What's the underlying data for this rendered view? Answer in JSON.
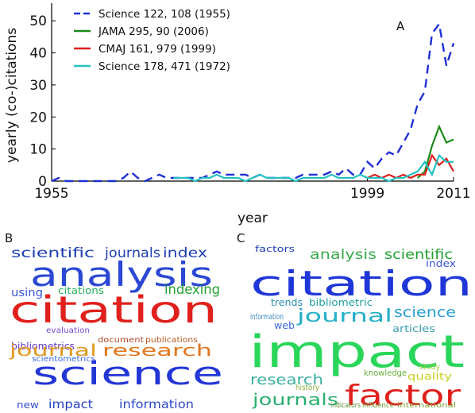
{
  "chart_data": {
    "type": "line",
    "panel_label": "A",
    "xlabel": "year",
    "ylabel": "yearly (co-)citations",
    "xlim": [
      1955,
      2011
    ],
    "ylim": [
      0,
      55
    ],
    "xticks": [
      1955,
      1999,
      2011
    ],
    "yticks": [
      0,
      10,
      20,
      30,
      40,
      50
    ],
    "grid": false,
    "legend_position": "top-left",
    "series": [
      {
        "name": "Science 122, 108 (1955)",
        "color": "#1f2fd6",
        "dash": true,
        "x": [
          1955,
          1956,
          1957,
          1958,
          1959,
          1960,
          1961,
          1962,
          1963,
          1964,
          1965,
          1966,
          1967,
          1968,
          1969,
          1970,
          1971,
          1972,
          1973,
          1974,
          1975,
          1976,
          1977,
          1978,
          1979,
          1980,
          1981,
          1982,
          1983,
          1984,
          1985,
          1986,
          1987,
          1988,
          1989,
          1990,
          1991,
          1992,
          1993,
          1994,
          1995,
          1996,
          1997,
          1998,
          1999,
          2000,
          2001,
          2002,
          2003,
          2004,
          2005,
          2006,
          2007,
          2008,
          2009,
          2010,
          2011
        ],
        "y": [
          0,
          1,
          0,
          0,
          0,
          0,
          0,
          0,
          0,
          0,
          1,
          3,
          1,
          0,
          1,
          2,
          1,
          1,
          1,
          1,
          1,
          1,
          2,
          3,
          2,
          2,
          2,
          2,
          1,
          2,
          1,
          1,
          1,
          1,
          1,
          2,
          2,
          2,
          2,
          3,
          2,
          4,
          2,
          2,
          6,
          4,
          7,
          9,
          8,
          12,
          16,
          24,
          28,
          46,
          49,
          36,
          43
        ]
      },
      {
        "name": "JAMA 295, 90 (2006)",
        "color": "#1b8a1b",
        "dash": false,
        "x": [
          2006,
          2007,
          2008,
          2009,
          2010,
          2011
        ],
        "y": [
          1,
          3,
          11,
          17,
          12,
          13
        ]
      },
      {
        "name": "CMAJ 161, 979 (1999)",
        "color": "#e01c1c",
        "dash": false,
        "x": [
          1999,
          2000,
          2001,
          2002,
          2003,
          2004,
          2005,
          2006,
          2007,
          2008,
          2009,
          2010,
          2011
        ],
        "y": [
          1,
          2,
          1,
          2,
          1,
          2,
          1,
          2,
          2,
          8,
          5,
          7,
          3
        ]
      },
      {
        "name": "Science 178, 471 (1972)",
        "color": "#22c1c1",
        "dash": false,
        "x": [
          1972,
          1973,
          1974,
          1975,
          1976,
          1977,
          1978,
          1979,
          1980,
          1981,
          1982,
          1983,
          1984,
          1985,
          1986,
          1987,
          1988,
          1989,
          1990,
          1991,
          1992,
          1993,
          1994,
          1995,
          1996,
          1997,
          1998,
          1999,
          2000,
          2001,
          2002,
          2003,
          2004,
          2005,
          2006,
          2007,
          2008,
          2009,
          2010,
          2011
        ],
        "y": [
          1,
          1,
          1,
          0,
          1,
          1,
          2,
          1,
          1,
          1,
          0,
          1,
          2,
          1,
          1,
          1,
          1,
          0,
          1,
          1,
          1,
          1,
          2,
          1,
          1,
          1,
          2,
          1,
          1,
          1,
          0,
          1,
          1,
          2,
          3,
          6,
          2,
          8,
          6,
          6
        ]
      }
    ]
  },
  "panels": {
    "B": {
      "label": "B",
      "words": [
        {
          "t": "scientific",
          "c": "#1f3fb0"
        },
        {
          "t": "journals",
          "c": "#1f3fb0"
        },
        {
          "t": "index",
          "c": "#1f3fb0"
        },
        {
          "t": "analysis",
          "c": "#2b48d4"
        },
        {
          "t": "using",
          "c": "#3a55d8"
        },
        {
          "t": "citations",
          "c": "#24b05a"
        },
        {
          "t": "indexing",
          "c": "#22a032"
        },
        {
          "t": "citation",
          "c": "#e0201c"
        },
        {
          "t": "evaluation",
          "c": "#7a4bd0"
        },
        {
          "t": "bibliometrics",
          "c": "#6a3ac0"
        },
        {
          "t": "document",
          "c": "#b04a2a"
        },
        {
          "t": "publications",
          "c": "#b85a20"
        },
        {
          "t": "scientometrics",
          "c": "#3a6ad8"
        },
        {
          "t": "journal",
          "c": "#e09a20"
        },
        {
          "t": "research",
          "c": "#e07820"
        },
        {
          "t": "science",
          "c": "#2336d6"
        },
        {
          "t": "new",
          "c": "#3450c8"
        },
        {
          "t": "impact",
          "c": "#2740c0"
        },
        {
          "t": "information",
          "c": "#2d48c8"
        }
      ]
    },
    "C": {
      "label": "C",
      "words": [
        {
          "t": "factors",
          "c": "#1f3fb0"
        },
        {
          "t": "analysis",
          "c": "#3aa84a"
        },
        {
          "t": "scientific",
          "c": "#22a032"
        },
        {
          "t": "index",
          "c": "#3a55d8"
        },
        {
          "t": "citation",
          "c": "#1f36d8"
        },
        {
          "t": "trends",
          "c": "#2b8fb0"
        },
        {
          "t": "bibliometric",
          "c": "#22a0a0"
        },
        {
          "t": "journal",
          "c": "#26b0c8"
        },
        {
          "t": "science",
          "c": "#2aa0d0"
        },
        {
          "t": "web",
          "c": "#3a6ad8"
        },
        {
          "t": "information",
          "c": "#3a88c0"
        },
        {
          "t": "articles",
          "c": "#3aa0b0"
        },
        {
          "t": "impact",
          "c": "#2ad65a"
        },
        {
          "t": "research",
          "c": "#3ab0a0"
        },
        {
          "t": "journals",
          "c": "#2ab070"
        },
        {
          "t": "factor",
          "c": "#e0201c"
        },
        {
          "t": "knowledge",
          "c": "#6ab040"
        },
        {
          "t": "quality",
          "c": "#c8d020"
        },
        {
          "t": "study",
          "c": "#9ad040"
        },
        {
          "t": "history",
          "c": "#8ab040"
        },
        {
          "t": "indicators",
          "c": "#5a8a30"
        },
        {
          "t": "influence",
          "c": "#6a9a30"
        },
        {
          "t": "international",
          "c": "#7aa030"
        }
      ]
    }
  }
}
